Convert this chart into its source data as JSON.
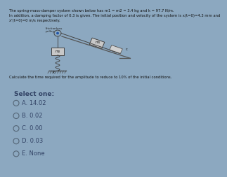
{
  "title_text": "The spring-mass-damper system shown below has m1 = m2 = 3.4 kg and k = 97.7 N/m.\nIn addition, a damping factor of 0.3 is given. The initial position and velocity of the system is x(t=0)=4.3 mm and\nx'(t=0)=0 m/s respectively.",
  "question_text": "Calculate the time required for the amplitude to reduce to 10% of the initial conditions.",
  "select_label": "Select one:",
  "options": [
    {
      "letter": "A",
      "value": "14.02"
    },
    {
      "letter": "B",
      "value": "0.02"
    },
    {
      "letter": "C",
      "value": "0.00"
    },
    {
      "letter": "D",
      "value": "0.03"
    },
    {
      "letter": "E",
      "value": "None"
    }
  ],
  "top_bg": "#8ca8c0",
  "bottom_bg": "#b8cedd",
  "title_fontsize": 3.8,
  "option_fontsize": 6.0,
  "select_fontsize": 6.5,
  "question_fontsize": 3.8,
  "radio_color": "#556677",
  "text_color": "#111111",
  "option_text_color": "#334466",
  "split": 0.54
}
